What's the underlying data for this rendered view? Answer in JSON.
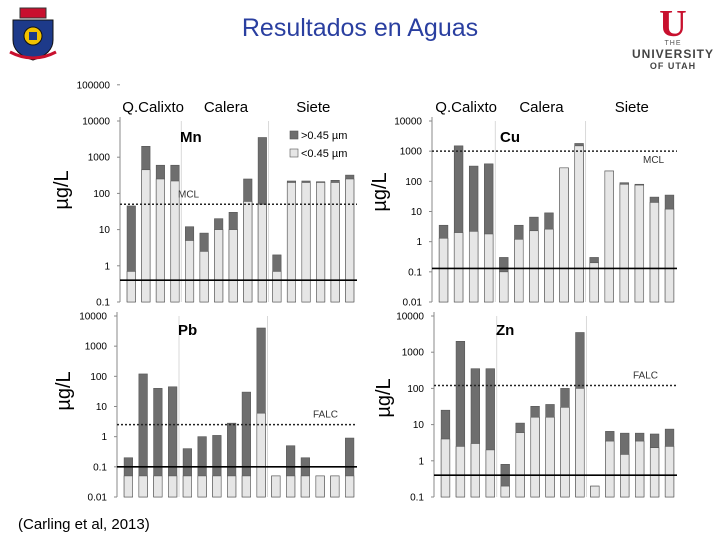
{
  "slide": {
    "title": "Resultados en Aguas",
    "citation": "(Carling et al, 2013)",
    "logo_right": {
      "line1": "THE",
      "line2": "UNIVERSITY",
      "line3": "OF UTAH",
      "letter": "U"
    }
  },
  "colors": {
    "dissolved": "#e6e6e6",
    "particulate": "#6e6e6e",
    "edge": "#555555"
  },
  "sites": [
    "Q.Calixto",
    "Calera",
    "Siete"
  ],
  "legend": {
    "coarse": ">0.45 µm",
    "fine": "<0.45 µm"
  },
  "chart_data": [
    {
      "type": "bar",
      "stacked": true,
      "log_scale": true,
      "panel": "Mn",
      "ylabel": "µg/L",
      "ylim": [
        0.1,
        10000
      ],
      "tick_labels": [
        "0.1",
        "1",
        "10",
        "100",
        "1000",
        "10000",
        "100000"
      ],
      "threshold": {
        "label": "MCL",
        "value": 50,
        "style": "dotted"
      },
      "baseline": {
        "value": 0.4
      },
      "series": [
        {
          "name": "<0.45 µm",
          "values": [
            0.7,
            450,
            250,
            220,
            5,
            2.5,
            10,
            10,
            60,
            50,
            0.7,
            200,
            200,
            200,
            200,
            250
          ]
        },
        {
          "name": ">0.45 µm",
          "values": [
            45,
            2000,
            600,
            600,
            12,
            8,
            20,
            30,
            250,
            3500,
            2,
            220,
            220,
            210,
            230,
            320
          ]
        }
      ]
    },
    {
      "type": "bar",
      "stacked": true,
      "log_scale": true,
      "panel": "Cu",
      "ylabel": "µg/L",
      "ylim": [
        0.01,
        10000
      ],
      "tick_labels": [
        "0.01",
        "0.1",
        "1",
        "10",
        "100",
        "1000",
        "10000"
      ],
      "threshold": {
        "label": "MCL",
        "value": 1000,
        "style": "dotted"
      },
      "baseline": {
        "value": 0.13
      },
      "series": [
        {
          "name": "<0.45 µm",
          "values": [
            1.3,
            2,
            2.2,
            1.8,
            0.1,
            1.2,
            2.3,
            2.6,
            280,
            1500,
            0.2,
            220,
            80,
            75,
            20,
            12
          ]
        },
        {
          "name": ">0.45 µm",
          "values": [
            3.5,
            1500,
            320,
            380,
            0.3,
            3.5,
            6.5,
            9,
            280,
            1800,
            0.3,
            220,
            90,
            80,
            30,
            35
          ]
        }
      ]
    },
    {
      "type": "bar",
      "stacked": true,
      "log_scale": true,
      "panel": "Pb",
      "ylabel": "µg/L",
      "ylim": [
        0.01,
        10000
      ],
      "tick_labels": [
        "0.01",
        "0.1",
        "1",
        "10",
        "100",
        "1000",
        "10000"
      ],
      "threshold": {
        "label": "FALC",
        "value": 2.5,
        "style": "dotted"
      },
      "baseline": {
        "value": 0.1
      },
      "series": [
        {
          "name": "<0.45 µm",
          "values": [
            0.05,
            0.05,
            0.05,
            0.05,
            0.05,
            0.05,
            0.05,
            0.05,
            0.05,
            6,
            0.05,
            0.05,
            0.05,
            0.05,
            0.05,
            0.05
          ]
        },
        {
          "name": ">0.45 µm",
          "values": [
            0.2,
            120,
            40,
            45,
            0.4,
            1,
            1.1,
            2.8,
            30,
            4000,
            0.05,
            0.5,
            0.2,
            0.05,
            0.05,
            0.9
          ]
        }
      ]
    },
    {
      "type": "bar",
      "stacked": true,
      "log_scale": true,
      "panel": "Zn",
      "ylabel": "µg/L",
      "ylim": [
        0.1,
        10000
      ],
      "tick_labels": [
        "0.1",
        "1",
        "10",
        "100",
        "1000",
        "10000"
      ],
      "threshold": {
        "label": "FALC",
        "value": 120,
        "style": "dotted"
      },
      "baseline": {
        "value": 0.4
      },
      "series": [
        {
          "name": "<0.45 µm",
          "values": [
            4,
            2.5,
            3,
            2,
            0.2,
            6,
            16,
            16,
            30,
            100,
            0.2,
            3.5,
            1.5,
            3.5,
            2.3,
            2.5
          ]
        },
        {
          "name": ">0.45 µm",
          "values": [
            25,
            2000,
            350,
            350,
            0.8,
            11,
            32,
            36,
            100,
            3500,
            0.2,
            6.5,
            5.8,
            5.8,
            5.5,
            7.5
          ]
        }
      ]
    }
  ]
}
